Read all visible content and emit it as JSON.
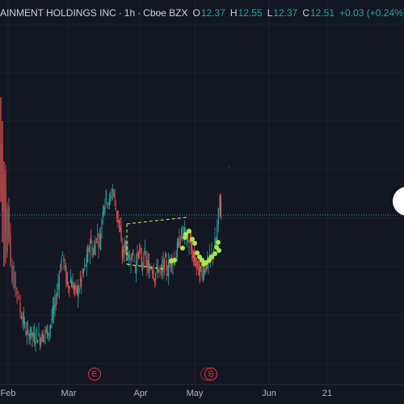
{
  "legend": {
    "symbol": "AINMENT HOLDINGS INC",
    "interval": "1h",
    "exchange": "Cboe BZX",
    "open_label": "O",
    "open": "12.37",
    "high_label": "H",
    "high": "12.55",
    "low_label": "L",
    "low": "12.37",
    "close_label": "C",
    "close": "12.51",
    "change": "+0.03 (+0.24%)"
  },
  "x_axis": {
    "labels": [
      "Feb",
      "Mar",
      "Apr",
      "May",
      "Jun",
      "21"
    ]
  },
  "events": [
    {
      "label": "E"
    },
    {
      "label": "E"
    }
  ],
  "colors": {
    "background": "#131722",
    "grid": "#1e222d",
    "up": "#26a69a",
    "down": "#ef5350",
    "price_line": "#26a69a",
    "signal_dot": "#a5e84a",
    "pattern_line": "#f5e663",
    "event": "#f23645"
  },
  "chart_data": {
    "type": "candlestick",
    "x_labels": [
      "Feb",
      "Mar",
      "Apr",
      "May",
      "Jun",
      "21"
    ],
    "last_price": 12.51,
    "series_path": [
      [
        0,
        13.2
      ],
      [
        2,
        14.8
      ],
      [
        4,
        12.6
      ],
      [
        6,
        13.9
      ],
      [
        8,
        11.2
      ],
      [
        10,
        12.9
      ],
      [
        12,
        12.1
      ],
      [
        14,
        10.9
      ],
      [
        16,
        10.3
      ],
      [
        18,
        10.6
      ],
      [
        20,
        10.2
      ],
      [
        22,
        10.0
      ],
      [
        24,
        9.6
      ],
      [
        26,
        9.4
      ],
      [
        30,
        9.0
      ],
      [
        34,
        8.6
      ],
      [
        38,
        8.7
      ],
      [
        42,
        8.5
      ],
      [
        46,
        8.6
      ],
      [
        50,
        8.5
      ],
      [
        54,
        8.6
      ],
      [
        58,
        8.7
      ],
      [
        62,
        8.8
      ],
      [
        66,
        9.3
      ],
      [
        70,
        9.8
      ],
      [
        74,
        10.6
      ],
      [
        78,
        11.3
      ],
      [
        80,
        10.9
      ],
      [
        84,
        10.2
      ],
      [
        88,
        10.4
      ],
      [
        92,
        10.1
      ],
      [
        96,
        10.0
      ],
      [
        100,
        10.3
      ],
      [
        104,
        10.7
      ],
      [
        108,
        11.0
      ],
      [
        112,
        11.7
      ],
      [
        116,
        11.2
      ],
      [
        120,
        11.9
      ],
      [
        124,
        11.6
      ],
      [
        128,
        12.8
      ],
      [
        132,
        13.1
      ],
      [
        136,
        12.9
      ],
      [
        140,
        13.4
      ],
      [
        144,
        12.7
      ],
      [
        148,
        12.2
      ],
      [
        152,
        11.2
      ],
      [
        156,
        11.6
      ],
      [
        160,
        11.0
      ],
      [
        164,
        11.3
      ],
      [
        168,
        10.8
      ],
      [
        172,
        11.4
      ],
      [
        176,
        10.9
      ],
      [
        180,
        11.2
      ],
      [
        184,
        10.7
      ],
      [
        188,
        10.9
      ],
      [
        192,
        10.5
      ],
      [
        196,
        10.8
      ],
      [
        200,
        10.6
      ],
      [
        204,
        11.0
      ],
      [
        208,
        10.7
      ],
      [
        212,
        11.1
      ],
      [
        216,
        11.0
      ],
      [
        220,
        11.4
      ],
      [
        224,
        11.8
      ],
      [
        228,
        12.0
      ],
      [
        232,
        11.7
      ],
      [
        236,
        11.5
      ],
      [
        240,
        11.1
      ],
      [
        244,
        10.9
      ],
      [
        248,
        10.6
      ],
      [
        252,
        10.7
      ],
      [
        256,
        10.9
      ],
      [
        260,
        11.0
      ],
      [
        264,
        11.3
      ],
      [
        268,
        11.7
      ],
      [
        271,
        12.5
      ],
      [
        273,
        13.1
      ],
      [
        274,
        12.51
      ]
    ]
  }
}
